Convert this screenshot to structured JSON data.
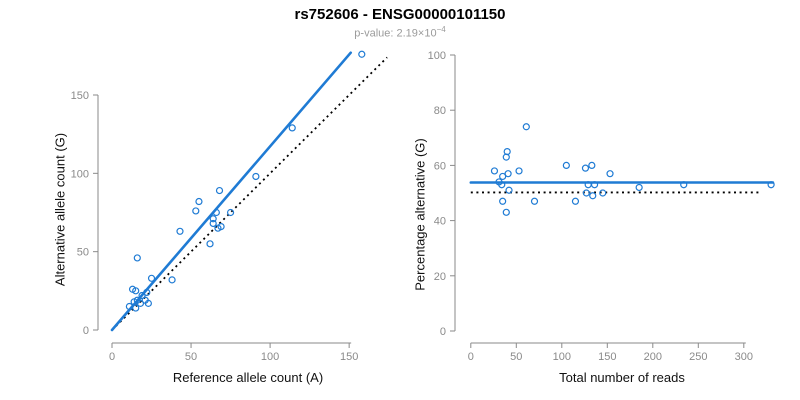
{
  "title": "rs752606 - ENSG00000101150",
  "subtitle": {
    "label": "p-value: 2.19×10",
    "exponent": "−4"
  },
  "colors": {
    "accent": "#1F7BD4",
    "axis": "#8A8A8A",
    "tick_label": "#8A8A8A",
    "identity": "#000000",
    "title": "#000000",
    "subtitle": "#9B9B9B"
  },
  "chart_data": [
    {
      "type": "scatter",
      "title": "",
      "xlabel": "Reference allele count (A)",
      "ylabel": "Alternative allele count (G)",
      "xlim": [
        0,
        175
      ],
      "ylim": [
        0,
        178
      ],
      "xticks": [
        0,
        50,
        100,
        150
      ],
      "yticks": [
        0,
        50,
        100,
        150
      ],
      "grid": false,
      "legend": false,
      "points": [
        [
          158,
          176
        ],
        [
          114,
          129
        ],
        [
          91,
          98
        ],
        [
          68,
          89
        ],
        [
          55,
          82
        ],
        [
          53,
          76
        ],
        [
          66,
          75
        ],
        [
          75,
          75
        ],
        [
          64,
          71
        ],
        [
          64,
          68
        ],
        [
          69,
          66
        ],
        [
          67,
          65
        ],
        [
          43,
          63
        ],
        [
          62,
          55
        ],
        [
          16,
          46
        ],
        [
          25,
          33
        ],
        [
          38,
          32
        ],
        [
          13,
          26
        ],
        [
          15,
          25
        ],
        [
          22,
          24
        ],
        [
          19,
          22
        ],
        [
          16,
          19
        ],
        [
          21,
          19
        ],
        [
          14,
          18
        ],
        [
          18,
          17
        ],
        [
          23,
          17
        ],
        [
          11,
          15
        ],
        [
          15,
          14
        ]
      ],
      "fit_line": {
        "x1": 0,
        "y1": 0,
        "x2": 151,
        "y2": 177
      },
      "identity_line": {
        "x1": 0,
        "y1": 0,
        "x2": 174,
        "y2": 174
      }
    },
    {
      "type": "scatter",
      "title": "",
      "xlabel": "Total number of reads",
      "ylabel": "Percentage alternative (G)",
      "xlim": [
        0,
        340
      ],
      "ylim": [
        0,
        100
      ],
      "xticks": [
        0,
        50,
        100,
        150,
        200,
        250,
        300
      ],
      "yticks": [
        0,
        20,
        40,
        60,
        80,
        100
      ],
      "grid": false,
      "legend": false,
      "points": [
        [
          61,
          74
        ],
        [
          40,
          65
        ],
        [
          39,
          63
        ],
        [
          26,
          58
        ],
        [
          53,
          58
        ],
        [
          105,
          60
        ],
        [
          126,
          59
        ],
        [
          133,
          60
        ],
        [
          153,
          57
        ],
        [
          35,
          56
        ],
        [
          41,
          57
        ],
        [
          31,
          54
        ],
        [
          34,
          53
        ],
        [
          129,
          53
        ],
        [
          136,
          53
        ],
        [
          185,
          52
        ],
        [
          234,
          53
        ],
        [
          330,
          53
        ],
        [
          42,
          51
        ],
        [
          127,
          50
        ],
        [
          145,
          50
        ],
        [
          134,
          49
        ],
        [
          35,
          47
        ],
        [
          70,
          47
        ],
        [
          115,
          47
        ],
        [
          39,
          43
        ]
      ],
      "fit_line": {
        "x1": 0,
        "y1": 53.8,
        "x2": 332,
        "y2": 53.8
      },
      "identity_line": {
        "x1": 0,
        "y1": 50.2,
        "x2": 318,
        "y2": 50.2
      }
    }
  ]
}
